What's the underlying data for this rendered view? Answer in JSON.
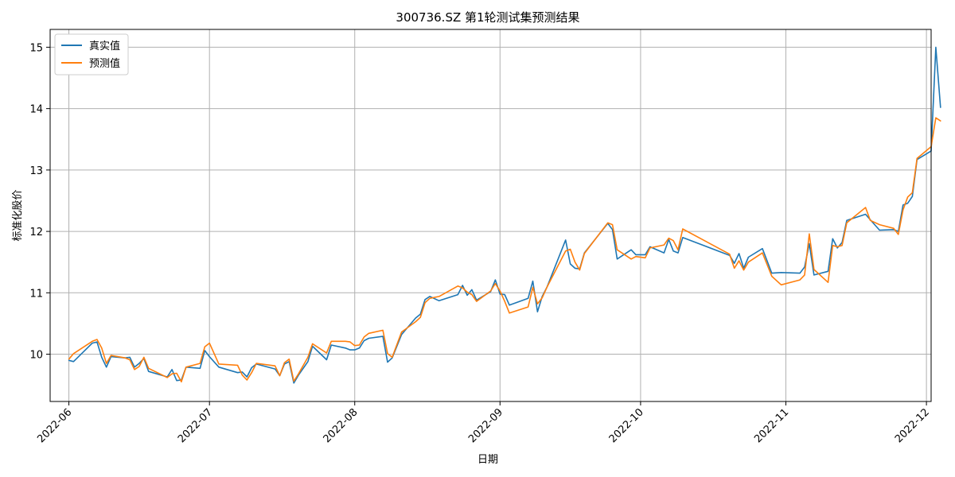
{
  "chart_data": {
    "type": "line",
    "title": "300736.SZ 第1轮测试集预测结果",
    "xlabel": "日期",
    "ylabel": "标准化股价",
    "x_ticks": [
      "2022-06",
      "2022-07",
      "2022-08",
      "2022-09",
      "2022-10",
      "2022-11",
      "2022-12"
    ],
    "y_ticks": [
      "10",
      "11",
      "12",
      "13",
      "14",
      "15"
    ],
    "xlim": [
      "2022-05-28",
      "2022-12-02"
    ],
    "ylim": [
      9.23,
      15.29
    ],
    "grid": true,
    "legend_position": "top-left",
    "series": [
      {
        "name": "真实值",
        "color": "#1f77b4",
        "points": [
          [
            "2022-06-01",
            9.9
          ],
          [
            "2022-06-02",
            9.88
          ],
          [
            "2022-06-06",
            10.18
          ],
          [
            "2022-06-07",
            10.2
          ],
          [
            "2022-06-08",
            9.95
          ],
          [
            "2022-06-09",
            9.79
          ],
          [
            "2022-06-10",
            9.96
          ],
          [
            "2022-06-13",
            9.94
          ],
          [
            "2022-06-14",
            9.95
          ],
          [
            "2022-06-15",
            9.79
          ],
          [
            "2022-06-16",
            9.85
          ],
          [
            "2022-06-17",
            9.93
          ],
          [
            "2022-06-18",
            9.72
          ],
          [
            "2022-06-22",
            9.63
          ],
          [
            "2022-06-23",
            9.75
          ],
          [
            "2022-06-24",
            9.57
          ],
          [
            "2022-06-25",
            9.58
          ],
          [
            "2022-06-26",
            9.79
          ],
          [
            "2022-06-29",
            9.77
          ],
          [
            "2022-06-30",
            10.06
          ],
          [
            "2022-07-01",
            9.96
          ],
          [
            "2022-07-03",
            9.79
          ],
          [
            "2022-07-07",
            9.7
          ],
          [
            "2022-07-08",
            9.71
          ],
          [
            "2022-07-09",
            9.63
          ],
          [
            "2022-07-10",
            9.78
          ],
          [
            "2022-07-11",
            9.84
          ],
          [
            "2022-07-15",
            9.76
          ],
          [
            "2022-07-16",
            9.65
          ],
          [
            "2022-07-17",
            9.84
          ],
          [
            "2022-07-18",
            9.88
          ],
          [
            "2022-07-19",
            9.53
          ],
          [
            "2022-07-20",
            9.66
          ],
          [
            "2022-07-22",
            9.88
          ],
          [
            "2022-07-23",
            10.13
          ],
          [
            "2022-07-26",
            9.91
          ],
          [
            "2022-07-27",
            10.15
          ],
          [
            "2022-07-30",
            10.1
          ],
          [
            "2022-07-31",
            10.07
          ],
          [
            "2022-08-01",
            10.07
          ],
          [
            "2022-08-02",
            10.1
          ],
          [
            "2022-08-03",
            10.22
          ],
          [
            "2022-08-04",
            10.26
          ],
          [
            "2022-08-07",
            10.29
          ],
          [
            "2022-08-08",
            9.87
          ],
          [
            "2022-08-09",
            9.94
          ],
          [
            "2022-08-11",
            10.32
          ],
          [
            "2022-08-14",
            10.59
          ],
          [
            "2022-08-15",
            10.65
          ],
          [
            "2022-08-16",
            10.89
          ],
          [
            "2022-08-17",
            10.94
          ],
          [
            "2022-08-19",
            10.87
          ],
          [
            "2022-08-23",
            10.97
          ],
          [
            "2022-08-24",
            11.12
          ],
          [
            "2022-08-25",
            10.96
          ],
          [
            "2022-08-26",
            11.05
          ],
          [
            "2022-08-27",
            10.88
          ],
          [
            "2022-08-30",
            11.02
          ],
          [
            "2022-08-31",
            11.21
          ],
          [
            "2022-09-01",
            10.98
          ],
          [
            "2022-09-02",
            10.97
          ],
          [
            "2022-09-03",
            10.8
          ],
          [
            "2022-09-07",
            10.91
          ],
          [
            "2022-09-08",
            11.19
          ],
          [
            "2022-09-09",
            10.69
          ],
          [
            "2022-09-10",
            10.94
          ],
          [
            "2022-09-11",
            11.09
          ],
          [
            "2022-09-15",
            11.86
          ],
          [
            "2022-09-16",
            11.47
          ],
          [
            "2022-09-17",
            11.4
          ],
          [
            "2022-09-18",
            11.39
          ],
          [
            "2022-09-19",
            11.65
          ],
          [
            "2022-09-24",
            12.13
          ],
          [
            "2022-09-25",
            12.03
          ],
          [
            "2022-09-26",
            11.55
          ],
          [
            "2022-09-29",
            11.7
          ],
          [
            "2022-09-30",
            11.62
          ],
          [
            "2022-10-02",
            11.62
          ],
          [
            "2022-10-03",
            11.75
          ],
          [
            "2022-10-06",
            11.65
          ],
          [
            "2022-10-07",
            11.87
          ],
          [
            "2022-10-08",
            11.68
          ],
          [
            "2022-10-09",
            11.65
          ],
          [
            "2022-10-10",
            11.9
          ],
          [
            "2022-10-20",
            11.61
          ],
          [
            "2022-10-21",
            11.48
          ],
          [
            "2022-10-22",
            11.64
          ],
          [
            "2022-10-23",
            11.4
          ],
          [
            "2022-10-24",
            11.58
          ],
          [
            "2022-10-27",
            11.72
          ],
          [
            "2022-10-29",
            11.32
          ],
          [
            "2022-10-31",
            11.33
          ],
          [
            "2022-11-04",
            11.32
          ],
          [
            "2022-11-05",
            11.42
          ],
          [
            "2022-11-06",
            11.8
          ],
          [
            "2022-11-07",
            11.29
          ],
          [
            "2022-11-10",
            11.35
          ],
          [
            "2022-11-11",
            11.88
          ],
          [
            "2022-11-12",
            11.73
          ],
          [
            "2022-11-13",
            11.82
          ],
          [
            "2022-11-14",
            12.18
          ],
          [
            "2022-11-18",
            12.28
          ],
          [
            "2022-11-19",
            12.19
          ],
          [
            "2022-11-21",
            12.02
          ],
          [
            "2022-11-24",
            12.03
          ],
          [
            "2022-11-25",
            12.0
          ],
          [
            "2022-11-26",
            12.43
          ],
          [
            "2022-11-27",
            12.46
          ],
          [
            "2022-11-28",
            12.57
          ],
          [
            "2022-11-29",
            13.17
          ],
          [
            "2022-12-02",
            13.31
          ],
          [
            "2022-12-03",
            15.0
          ],
          [
            "2022-12-04",
            14.02
          ]
        ]
      },
      {
        "name": "预测值",
        "color": "#ff7f0e",
        "points": [
          [
            "2022-06-01",
            9.92
          ],
          [
            "2022-06-02",
            10.01
          ],
          [
            "2022-06-06",
            10.21
          ],
          [
            "2022-06-07",
            10.24
          ],
          [
            "2022-06-08",
            10.1
          ],
          [
            "2022-06-09",
            9.85
          ],
          [
            "2022-06-10",
            9.98
          ],
          [
            "2022-06-13",
            9.94
          ],
          [
            "2022-06-14",
            9.91
          ],
          [
            "2022-06-15",
            9.75
          ],
          [
            "2022-06-16",
            9.8
          ],
          [
            "2022-06-17",
            9.95
          ],
          [
            "2022-06-18",
            9.77
          ],
          [
            "2022-06-22",
            9.62
          ],
          [
            "2022-06-23",
            9.68
          ],
          [
            "2022-06-24",
            9.69
          ],
          [
            "2022-06-25",
            9.55
          ],
          [
            "2022-06-26",
            9.79
          ],
          [
            "2022-06-29",
            9.85
          ],
          [
            "2022-06-30",
            10.12
          ],
          [
            "2022-07-01",
            10.18
          ],
          [
            "2022-07-03",
            9.84
          ],
          [
            "2022-07-07",
            9.82
          ],
          [
            "2022-07-08",
            9.66
          ],
          [
            "2022-07-09",
            9.58
          ],
          [
            "2022-07-10",
            9.7
          ],
          [
            "2022-07-11",
            9.85
          ],
          [
            "2022-07-15",
            9.81
          ],
          [
            "2022-07-16",
            9.65
          ],
          [
            "2022-07-17",
            9.86
          ],
          [
            "2022-07-18",
            9.92
          ],
          [
            "2022-07-19",
            9.56
          ],
          [
            "2022-07-20",
            9.68
          ],
          [
            "2022-07-22",
            9.95
          ],
          [
            "2022-07-23",
            10.17
          ],
          [
            "2022-07-26",
            10.02
          ],
          [
            "2022-07-27",
            10.21
          ],
          [
            "2022-07-30",
            10.21
          ],
          [
            "2022-07-31",
            10.2
          ],
          [
            "2022-08-01",
            10.14
          ],
          [
            "2022-08-02",
            10.15
          ],
          [
            "2022-08-03",
            10.28
          ],
          [
            "2022-08-04",
            10.34
          ],
          [
            "2022-08-07",
            10.39
          ],
          [
            "2022-08-08",
            10.01
          ],
          [
            "2022-08-09",
            9.95
          ],
          [
            "2022-08-11",
            10.36
          ],
          [
            "2022-08-14",
            10.53
          ],
          [
            "2022-08-15",
            10.6
          ],
          [
            "2022-08-16",
            10.84
          ],
          [
            "2022-08-17",
            10.91
          ],
          [
            "2022-08-19",
            10.94
          ],
          [
            "2022-08-23",
            11.11
          ],
          [
            "2022-08-24",
            11.08
          ],
          [
            "2022-08-25",
            11.01
          ],
          [
            "2022-08-26",
            10.97
          ],
          [
            "2022-08-27",
            10.86
          ],
          [
            "2022-08-30",
            11.03
          ],
          [
            "2022-08-31",
            11.15
          ],
          [
            "2022-09-01",
            11.03
          ],
          [
            "2022-09-02",
            10.86
          ],
          [
            "2022-09-03",
            10.67
          ],
          [
            "2022-09-07",
            10.77
          ],
          [
            "2022-09-08",
            11.09
          ],
          [
            "2022-09-09",
            10.82
          ],
          [
            "2022-09-10",
            10.92
          ],
          [
            "2022-09-11",
            11.09
          ],
          [
            "2022-09-15",
            11.68
          ],
          [
            "2022-09-16",
            11.71
          ],
          [
            "2022-09-17",
            11.5
          ],
          [
            "2022-09-18",
            11.37
          ],
          [
            "2022-09-19",
            11.64
          ],
          [
            "2022-09-24",
            12.14
          ],
          [
            "2022-09-25",
            12.11
          ],
          [
            "2022-09-26",
            11.7
          ],
          [
            "2022-09-29",
            11.55
          ],
          [
            "2022-09-30",
            11.59
          ],
          [
            "2022-10-02",
            11.57
          ],
          [
            "2022-10-03",
            11.73
          ],
          [
            "2022-10-06",
            11.78
          ],
          [
            "2022-10-07",
            11.89
          ],
          [
            "2022-10-08",
            11.85
          ],
          [
            "2022-10-09",
            11.7
          ],
          [
            "2022-10-10",
            12.04
          ],
          [
            "2022-10-20",
            11.63
          ],
          [
            "2022-10-21",
            11.4
          ],
          [
            "2022-10-22",
            11.52
          ],
          [
            "2022-10-23",
            11.37
          ],
          [
            "2022-10-24",
            11.5
          ],
          [
            "2022-10-27",
            11.65
          ],
          [
            "2022-10-29",
            11.27
          ],
          [
            "2022-10-31",
            11.13
          ],
          [
            "2022-11-04",
            11.21
          ],
          [
            "2022-11-05",
            11.29
          ],
          [
            "2022-11-06",
            11.96
          ],
          [
            "2022-11-07",
            11.38
          ],
          [
            "2022-11-10",
            11.17
          ],
          [
            "2022-11-11",
            11.77
          ],
          [
            "2022-11-12",
            11.75
          ],
          [
            "2022-11-13",
            11.77
          ],
          [
            "2022-11-14",
            12.14
          ],
          [
            "2022-11-18",
            12.39
          ],
          [
            "2022-11-19",
            12.18
          ],
          [
            "2022-11-21",
            12.11
          ],
          [
            "2022-11-24",
            12.05
          ],
          [
            "2022-11-25",
            11.95
          ],
          [
            "2022-11-26",
            12.35
          ],
          [
            "2022-11-27",
            12.56
          ],
          [
            "2022-11-28",
            12.63
          ],
          [
            "2022-11-29",
            13.19
          ],
          [
            "2022-12-02",
            13.38
          ],
          [
            "2022-12-03",
            13.85
          ],
          [
            "2022-12-04",
            13.8
          ]
        ]
      }
    ]
  }
}
